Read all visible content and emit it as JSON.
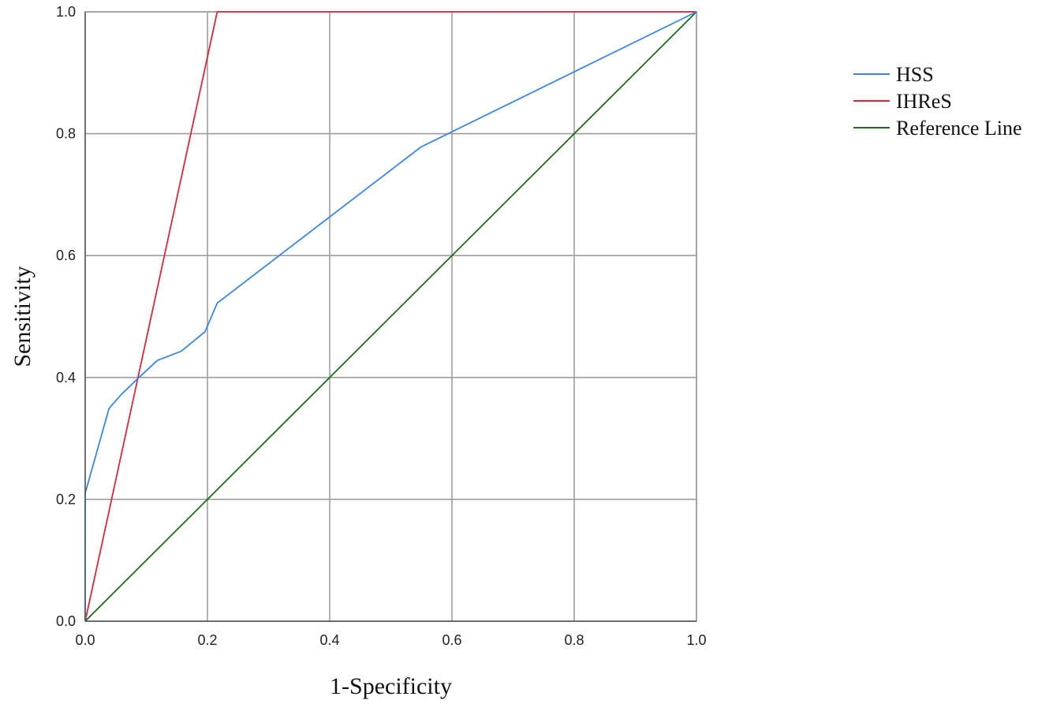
{
  "chart_data": {
    "type": "line",
    "title": "",
    "xlabel": "1-Specificity",
    "ylabel": "Sensitivity",
    "xlim": [
      0,
      1
    ],
    "ylim": [
      0,
      1
    ],
    "grid": true,
    "legend_position": "top-right",
    "x_ticks": [
      "0.0",
      "0.2",
      "0.4",
      "0.6",
      "0.8",
      "1.0"
    ],
    "y_ticks": [
      "0.0",
      "0.2",
      "0.4",
      "0.6",
      "0.8",
      "1.0"
    ],
    "series": [
      {
        "name": "HSS",
        "color": "#3a86e0",
        "points": [
          [
            0,
            0
          ],
          [
            0,
            0.21
          ],
          [
            0.039,
            0.349
          ],
          [
            0.059,
            0.372
          ],
          [
            0.088,
            0.4
          ],
          [
            0.118,
            0.428
          ],
          [
            0.157,
            0.443
          ],
          [
            0.196,
            0.475
          ],
          [
            0.216,
            0.522
          ],
          [
            0.549,
            0.778
          ],
          [
            1.0,
            1.0
          ]
        ]
      },
      {
        "name": "IHReS",
        "color": "#d62a3c",
        "points": [
          [
            0,
            0
          ],
          [
            0.216,
            1.0
          ],
          [
            1.0,
            1.0
          ]
        ]
      },
      {
        "name": "Reference Line",
        "color": "#1e6b1e",
        "points": [
          [
            0,
            0
          ],
          [
            1.0,
            1.0
          ]
        ]
      }
    ]
  }
}
